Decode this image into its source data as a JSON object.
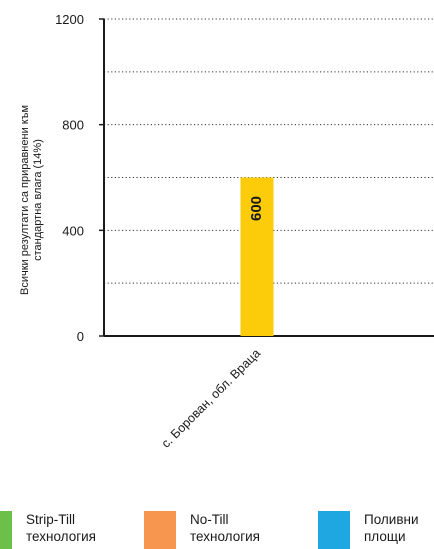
{
  "chart_data": {
    "type": "bar",
    "categories": [
      "с. Борован, обл. Враца"
    ],
    "series": [
      {
        "values": [
          600
        ],
        "color": "#FCCB0A"
      }
    ],
    "data_labels": [
      "600"
    ],
    "ylabel_lines": [
      "Всички резултати са приравнени към",
      "стандартна влага (14%)"
    ],
    "yticks": [
      0,
      400,
      800,
      1200
    ],
    "ylim": [
      0,
      1200
    ],
    "grid": "dotted-horizontal",
    "legend": {
      "position": "bottom",
      "items": [
        {
          "label_lines": [
            "Strip-Till",
            "технология"
          ],
          "color": "#6CC04A"
        },
        {
          "label_lines": [
            "No-Till",
            "технология"
          ],
          "color": "#F7964F"
        },
        {
          "label_lines": [
            "Поливни",
            "площи"
          ],
          "color": "#1FA7E1"
        }
      ]
    }
  }
}
